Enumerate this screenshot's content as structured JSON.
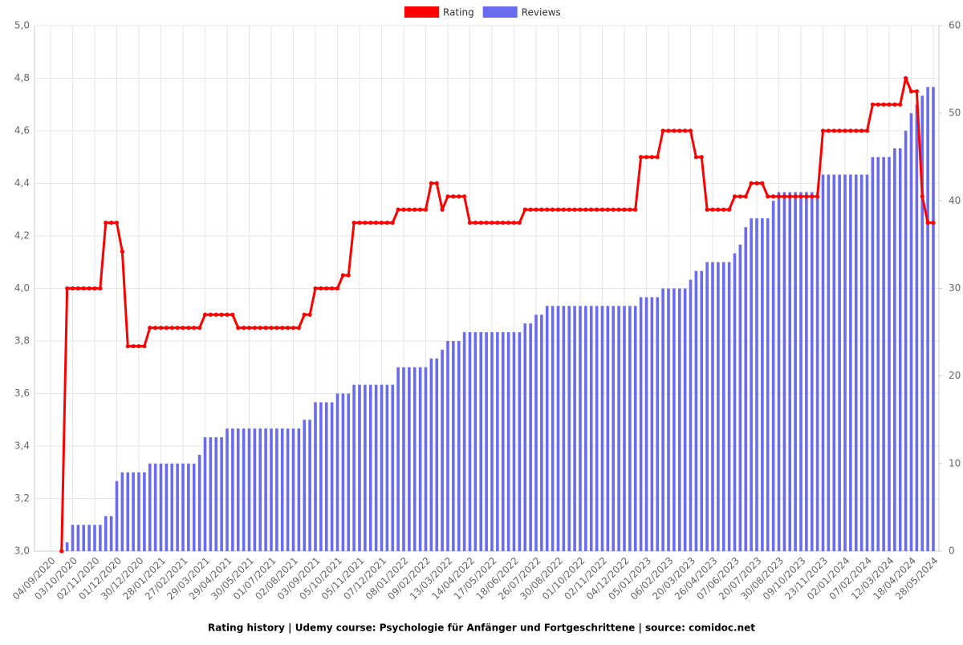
{
  "chart_data": {
    "type": "bar",
    "title": "Rating history | Udemy course: Psychologie für Anfänger und Fortgeschrittene | source: comidoc.net",
    "categories": [
      "04/09/2020",
      null,
      null,
      null,
      "03/10/2020",
      null,
      null,
      null,
      "02/11/2020",
      null,
      null,
      null,
      "01/12/2020",
      null,
      null,
      null,
      "30/12/2020",
      null,
      null,
      null,
      "28/01/2021",
      null,
      null,
      null,
      "27/02/2021",
      null,
      null,
      null,
      "29/03/2021",
      null,
      null,
      null,
      "29/04/2021",
      null,
      null,
      null,
      "30/05/2021",
      null,
      null,
      null,
      "01/07/2021",
      null,
      null,
      null,
      "02/08/2021",
      null,
      null,
      null,
      "03/09/2021",
      null,
      null,
      null,
      "05/10/2021",
      null,
      null,
      null,
      "05/11/2021",
      null,
      null,
      null,
      "07/12/2021",
      null,
      null,
      null,
      "08/01/2022",
      null,
      null,
      null,
      "09/02/2022",
      null,
      null,
      null,
      "13/03/2022",
      null,
      null,
      null,
      "14/04/2022",
      null,
      null,
      null,
      "17/05/2022",
      null,
      null,
      null,
      "18/06/2022",
      null,
      null,
      null,
      "26/07/2022",
      null,
      null,
      null,
      "30/08/2022",
      null,
      null,
      null,
      "01/10/2022",
      null,
      null,
      null,
      "02/11/2022",
      null,
      null,
      null,
      "04/12/2022",
      null,
      null,
      null,
      "05/01/2023",
      null,
      null,
      null,
      "06/02/2023",
      null,
      null,
      null,
      "20/03/2023",
      null,
      null,
      null,
      "26/04/2023",
      null,
      null,
      null,
      "07/06/2023",
      null,
      null,
      null,
      "20/07/2023",
      null,
      null,
      null,
      "30/08/2023",
      null,
      null,
      null,
      "09/10/2023",
      null,
      null,
      null,
      "23/11/2023",
      null,
      null,
      null,
      "02/01/2024",
      null,
      null,
      null,
      "07/02/2024",
      null,
      null,
      null,
      "12/03/2024",
      null,
      null,
      null,
      "18/04/2024",
      null,
      null,
      null,
      "28/05/2024"
    ],
    "series": [
      {
        "name": "Rating",
        "type": "line",
        "color": "#ff0000",
        "values": [
          null,
          null,
          3.0,
          4.0,
          4.0,
          4.0,
          4.0,
          4.0,
          4.0,
          4.0,
          4.25,
          4.25,
          4.25,
          4.14,
          3.78,
          3.78,
          3.78,
          3.78,
          3.85,
          3.85,
          3.85,
          3.85,
          3.85,
          3.85,
          3.85,
          3.85,
          3.85,
          3.85,
          3.9,
          3.9,
          3.9,
          3.9,
          3.9,
          3.9,
          3.85,
          3.85,
          3.85,
          3.85,
          3.85,
          3.85,
          3.85,
          3.85,
          3.85,
          3.85,
          3.85,
          3.85,
          3.9,
          3.9,
          4.0,
          4.0,
          4.0,
          4.0,
          4.0,
          4.05,
          4.05,
          4.25,
          4.25,
          4.25,
          4.25,
          4.25,
          4.25,
          4.25,
          4.25,
          4.3,
          4.3,
          4.3,
          4.3,
          4.3,
          4.3,
          4.4,
          4.4,
          4.3,
          4.35,
          4.35,
          4.35,
          4.35,
          4.25,
          4.25,
          4.25,
          4.25,
          4.25,
          4.25,
          4.25,
          4.25,
          4.25,
          4.25,
          4.3,
          4.3,
          4.3,
          4.3,
          4.3,
          4.3,
          4.3,
          4.3,
          4.3,
          4.3,
          4.3,
          4.3,
          4.3,
          4.3,
          4.3,
          4.3,
          4.3,
          4.3,
          4.3,
          4.3,
          4.3,
          4.5,
          4.5,
          4.5,
          4.5,
          4.6,
          4.6,
          4.6,
          4.6,
          4.6,
          4.6,
          4.5,
          4.5,
          4.3,
          4.3,
          4.3,
          4.3,
          4.3,
          4.35,
          4.35,
          4.35,
          4.4,
          4.4,
          4.4,
          4.35,
          4.35,
          4.35,
          4.35,
          4.35,
          4.35,
          4.35,
          4.35,
          4.35,
          4.35,
          4.6,
          4.6,
          4.6,
          4.6,
          4.6,
          4.6,
          4.6,
          4.6,
          4.6,
          4.7,
          4.7,
          4.7,
          4.7,
          4.7,
          4.7,
          4.8,
          4.75,
          4.75,
          4.35,
          4.25,
          4.25
        ]
      },
      {
        "name": "Reviews",
        "type": "bar",
        "axis": "y2",
        "color": "#6b6bef",
        "values": [
          null,
          null,
          0,
          1,
          3,
          3,
          3,
          3,
          3,
          3,
          4,
          4,
          8,
          9,
          9,
          9,
          9,
          9,
          10,
          10,
          10,
          10,
          10,
          10,
          10,
          10,
          10,
          11,
          13,
          13,
          13,
          13,
          14,
          14,
          14,
          14,
          14,
          14,
          14,
          14,
          14,
          14,
          14,
          14,
          14,
          14,
          15,
          15,
          17,
          17,
          17,
          17,
          18,
          18,
          18,
          19,
          19,
          19,
          19,
          19,
          19,
          19,
          19,
          21,
          21,
          21,
          21,
          21,
          21,
          22,
          22,
          23,
          24,
          24,
          24,
          25,
          25,
          25,
          25,
          25,
          25,
          25,
          25,
          25,
          25,
          25,
          26,
          26,
          27,
          27,
          28,
          28,
          28,
          28,
          28,
          28,
          28,
          28,
          28,
          28,
          28,
          28,
          28,
          28,
          28,
          28,
          28,
          29,
          29,
          29,
          29,
          30,
          30,
          30,
          30,
          30,
          31,
          32,
          32,
          33,
          33,
          33,
          33,
          33,
          34,
          35,
          37,
          38,
          38,
          38,
          38,
          40,
          41,
          41,
          41,
          41,
          41,
          41,
          41,
          41,
          43,
          43,
          43,
          43,
          43,
          43,
          43,
          43,
          43,
          45,
          45,
          45,
          45,
          46,
          46,
          48,
          50,
          51,
          52,
          53,
          53
        ]
      }
    ],
    "ylim": [
      3,
      5
    ],
    "yticks": [
      {
        "value": 3,
        "label": "3,0"
      },
      {
        "value": 3.2,
        "label": "3,2"
      },
      {
        "value": 3.4,
        "label": "3,4"
      },
      {
        "value": 3.6,
        "label": "3,6"
      },
      {
        "value": 3.8,
        "label": "3,8"
      },
      {
        "value": 4,
        "label": "4,0"
      },
      {
        "value": 4.2,
        "label": "4,2"
      },
      {
        "value": 4.4,
        "label": "4,4"
      },
      {
        "value": 4.6,
        "label": "4,6"
      },
      {
        "value": 4.8,
        "label": "4,8"
      },
      {
        "value": 5,
        "label": "5,0"
      }
    ],
    "y2lim": [
      0,
      60
    ],
    "y2ticks": [
      0,
      10,
      20,
      30,
      40,
      50,
      60
    ],
    "grid": true,
    "legend": "top"
  }
}
